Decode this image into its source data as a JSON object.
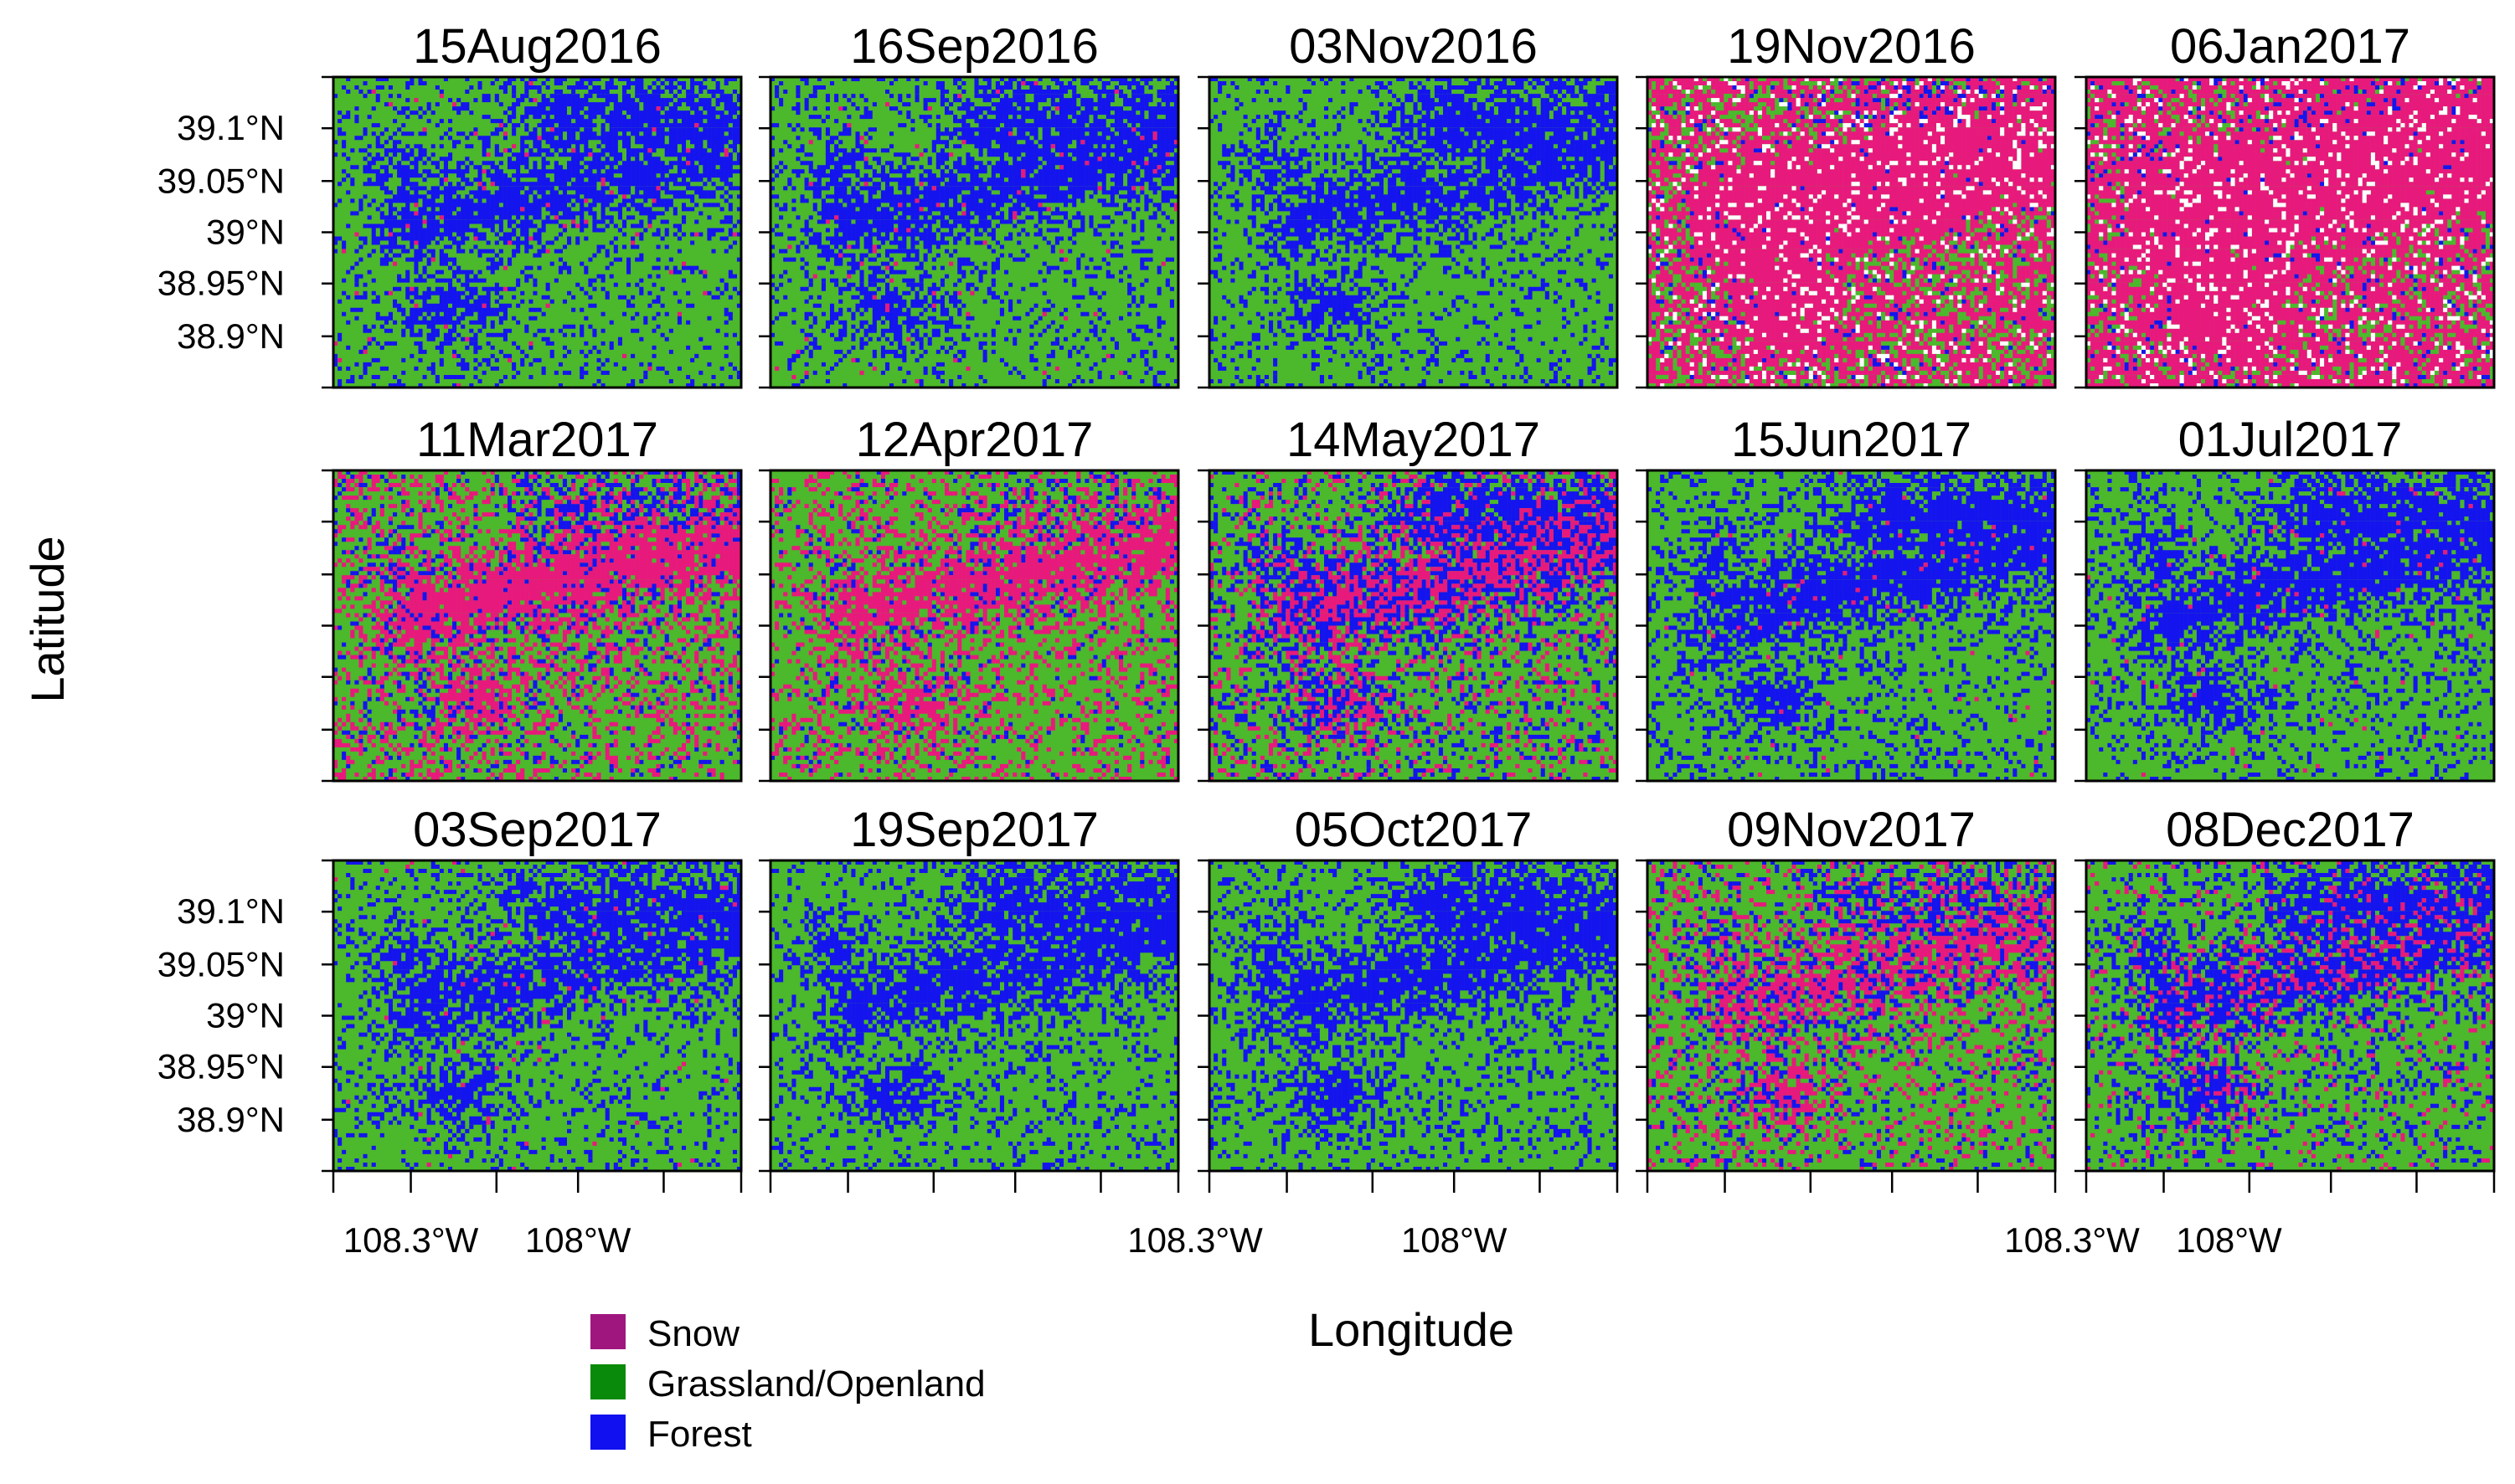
{
  "figure": {
    "x_axis_title": "Longitude",
    "y_axis_title": "Latitude"
  },
  "panels": [
    {
      "date": "15Aug2016",
      "snow": 0.01,
      "grassland": 0.62,
      "forest": 0.37
    },
    {
      "date": "16Sep2016",
      "snow": 0.01,
      "grassland": 0.61,
      "forest": 0.38
    },
    {
      "date": "03Nov2016",
      "snow": 0.0,
      "grassland": 0.64,
      "forest": 0.36
    },
    {
      "date": "19Nov2016",
      "snow": 0.48,
      "grassland": 0.22,
      "forest": 0.3
    },
    {
      "date": "06Jan2017",
      "snow": 0.55,
      "grassland": 0.03,
      "forest": 0.42
    },
    {
      "date": "11Mar2017",
      "snow": 0.3,
      "grassland": 0.44,
      "forest": 0.26
    },
    {
      "date": "12Apr2017",
      "snow": 0.28,
      "grassland": 0.58,
      "forest": 0.14
    },
    {
      "date": "14May2017",
      "snow": 0.18,
      "grassland": 0.42,
      "forest": 0.4
    },
    {
      "date": "15Jun2017",
      "snow": 0.01,
      "grassland": 0.6,
      "forest": 0.39
    },
    {
      "date": "01Jul2017",
      "snow": 0.01,
      "grassland": 0.6,
      "forest": 0.39
    },
    {
      "date": "03Sep2017",
      "snow": 0.01,
      "grassland": 0.64,
      "forest": 0.35
    },
    {
      "date": "19Sep2017",
      "snow": 0.0,
      "grassland": 0.63,
      "forest": 0.37
    },
    {
      "date": "05Oct2017",
      "snow": 0.0,
      "grassland": 0.63,
      "forest": 0.37
    },
    {
      "date": "09Nov2017",
      "snow": 0.2,
      "grassland": 0.55,
      "forest": 0.25
    },
    {
      "date": "08Dec2017",
      "snow": 0.08,
      "grassland": 0.55,
      "forest": 0.37
    }
  ],
  "y_ticks": [
    "39.1°N",
    "39.05°N",
    "39°N",
    "38.95°N",
    "38.9°N"
  ],
  "x_ticks": [
    "108.3°W",
    "108°W"
  ],
  "legend": [
    {
      "label": "Snow",
      "color": "#a0167f"
    },
    {
      "label": "Grassland/Openland",
      "color": "#0a8a0a"
    },
    {
      "label": "Forest",
      "color": "#1010f0"
    }
  ],
  "map_colors": {
    "snow": "#e8197c",
    "grassland": "#4cb82c",
    "forest": "#1414ee",
    "cloud": "#ffffff"
  }
}
